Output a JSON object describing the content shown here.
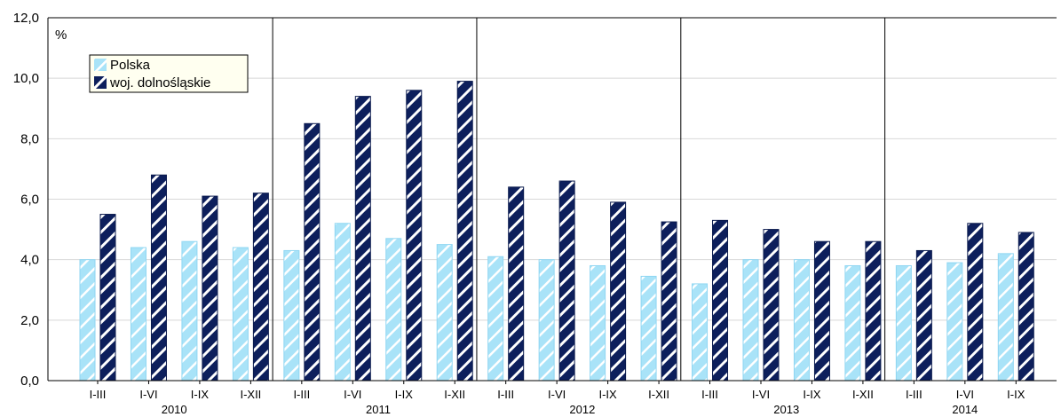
{
  "chart_data": {
    "type": "bar",
    "y_unit_label": "%",
    "ylim": [
      0,
      12
    ],
    "y_ticks": [
      "0,0",
      "2,0",
      "4,0",
      "6,0",
      "8,0",
      "10,0",
      "12,0"
    ],
    "grid": true,
    "legend_position": "top-left",
    "categories": [
      "I-III",
      "I-VI",
      "I-IX",
      "I-XII",
      "I-III",
      "I-VI",
      "I-IX",
      "I-XII",
      "I-III",
      "I-VI",
      "I-IX",
      "I-XII",
      "I-III",
      "I-VI",
      "I-IX",
      "I-XII",
      "I-III",
      "I-VI",
      "I-IX"
    ],
    "groups": [
      {
        "label": "2010",
        "count": 4
      },
      {
        "label": "2011",
        "count": 4
      },
      {
        "label": "2012",
        "count": 4
      },
      {
        "label": "2013",
        "count": 4
      },
      {
        "label": "2014",
        "count": 3
      }
    ],
    "series": [
      {
        "name": "Polska",
        "color": "#a9e3f8",
        "values": [
          4.0,
          4.4,
          4.6,
          4.4,
          4.3,
          5.2,
          4.7,
          4.5,
          4.1,
          4.0,
          3.8,
          3.45,
          3.2,
          4.0,
          4.0,
          3.8,
          3.8,
          3.9,
          4.2
        ]
      },
      {
        "name": "woj. dolnośląskie",
        "color": "#0d1f5c",
        "values": [
          5.5,
          6.8,
          6.1,
          6.2,
          8.5,
          9.4,
          9.6,
          9.9,
          6.4,
          6.6,
          5.9,
          5.25,
          5.3,
          5.0,
          4.6,
          4.6,
          4.3,
          5.2,
          4.9
        ]
      }
    ]
  }
}
